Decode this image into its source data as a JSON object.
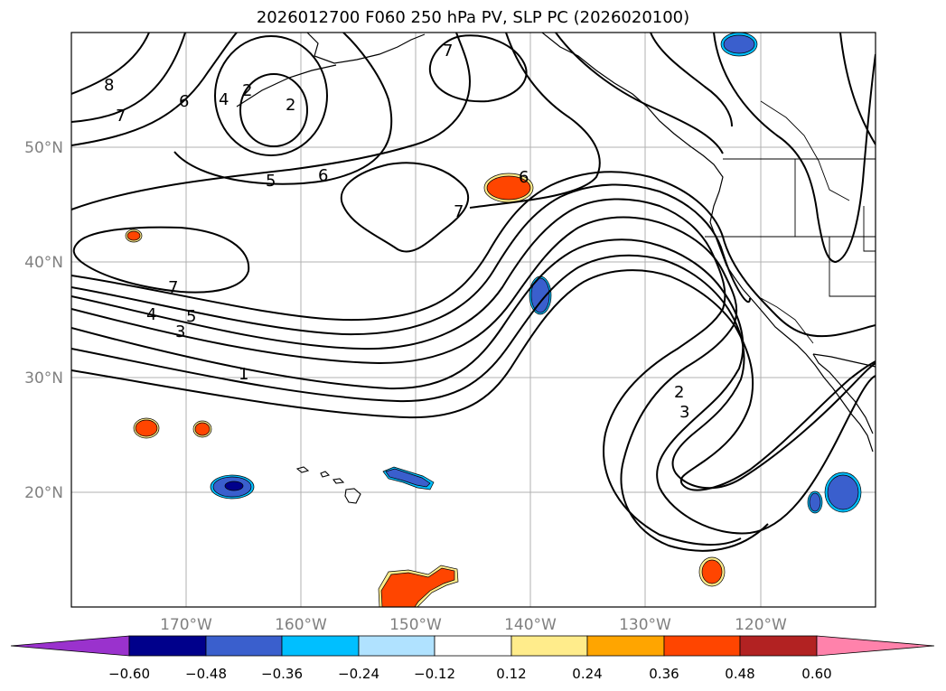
{
  "title": "2026012700 F060 250 hPa PV, SLP PC (2026020100)",
  "map": {
    "lon_range": [
      -180,
      -110
    ],
    "lat_range": [
      10,
      60
    ],
    "lon_ticks": [
      "170°W",
      "160°W",
      "150°W",
      "140°W",
      "130°W",
      "120°W"
    ],
    "lat_ticks": [
      "50°N",
      "40°N",
      "30°N",
      "20°N"
    ],
    "grid": true
  },
  "contour_labels": [
    {
      "id": "c8",
      "text": "8"
    },
    {
      "id": "c7a",
      "text": "7"
    },
    {
      "id": "c6a",
      "text": "6"
    },
    {
      "id": "c4a",
      "text": "4"
    },
    {
      "id": "c2a",
      "text": "2"
    },
    {
      "id": "c2b",
      "text": "2"
    },
    {
      "id": "c7b",
      "text": "7"
    },
    {
      "id": "c5a",
      "text": "5"
    },
    {
      "id": "c6b",
      "text": "6"
    },
    {
      "id": "c7c",
      "text": "7"
    },
    {
      "id": "c6c",
      "text": "6"
    },
    {
      "id": "c7d",
      "text": "7"
    },
    {
      "id": "c4b",
      "text": "4"
    },
    {
      "id": "c5b",
      "text": "5"
    },
    {
      "id": "c3a",
      "text": "3"
    },
    {
      "id": "c1",
      "text": "1"
    },
    {
      "id": "c2c",
      "text": "2"
    },
    {
      "id": "c3b",
      "text": "3"
    }
  ],
  "colorbar": {
    "ticks": [
      "−0.60",
      "−0.48",
      "−0.36",
      "−0.24",
      "−0.12",
      "0.12",
      "0.24",
      "0.36",
      "0.48",
      "0.60"
    ],
    "colors": [
      "#9a32cd",
      "#00008b",
      "#3a5fcd",
      "#00bfff",
      "#b0e2ff",
      "#ffffff",
      "#ffec8b",
      "#ffa500",
      "#ff4500",
      "#b22222",
      "#ff82ab"
    ]
  }
}
